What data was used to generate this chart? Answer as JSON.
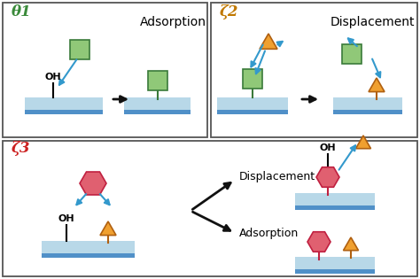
{
  "bg_color": "#ffffff",
  "surface_top": "#b8d8e8",
  "surface_bottom": "#5090c8",
  "green_sq_fc": "#90c878",
  "green_sq_ec": "#3a7a3a",
  "orange_tri_fc": "#f0a030",
  "orange_tri_ec": "#b06010",
  "red_hex_fc": "#e06070",
  "red_hex_ec": "#c02040",
  "arrow_blue": "#3399cc",
  "arrow_black": "#111111",
  "text_green": "#3a8a3a",
  "text_orange": "#c07800",
  "text_red": "#cc2020",
  "label1": "θ1",
  "label2": "ζ2",
  "label3": "ζ3",
  "title1": "Adsorption",
  "title2": "Displacement",
  "disp_text": "Displacement",
  "ads_text": "Adsorption"
}
